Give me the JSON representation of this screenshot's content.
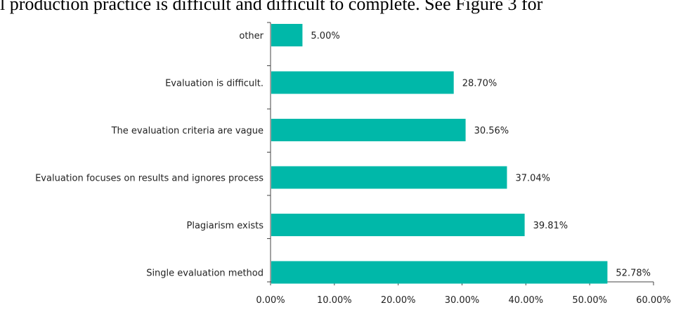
{
  "header_text": "l production practice is difficult and difficult to complete. See Figure 3 for",
  "chart_data": {
    "type": "bar",
    "orientation": "horizontal",
    "categories": [
      "other",
      "Evaluation is difficult.",
      "The evaluation criteria are vague",
      "Evaluation focuses on results and ignores process",
      "Plagiarism exists",
      "Single evaluation method"
    ],
    "values": [
      5.0,
      28.7,
      30.56,
      37.04,
      39.81,
      52.78
    ],
    "value_labels": [
      "5.00%",
      "28.70%",
      "30.56%",
      "37.04%",
      "39.81%",
      "52.78%"
    ],
    "xlim": [
      0,
      60
    ],
    "xticks": [
      "0.00%",
      "10.00%",
      "20.00%",
      "30.00%",
      "40.00%",
      "50.00%",
      "60.00%"
    ],
    "title": "",
    "xlabel": "",
    "ylabel": "",
    "grid": false,
    "legend": "none",
    "bar_color": "#00B8A9"
  }
}
